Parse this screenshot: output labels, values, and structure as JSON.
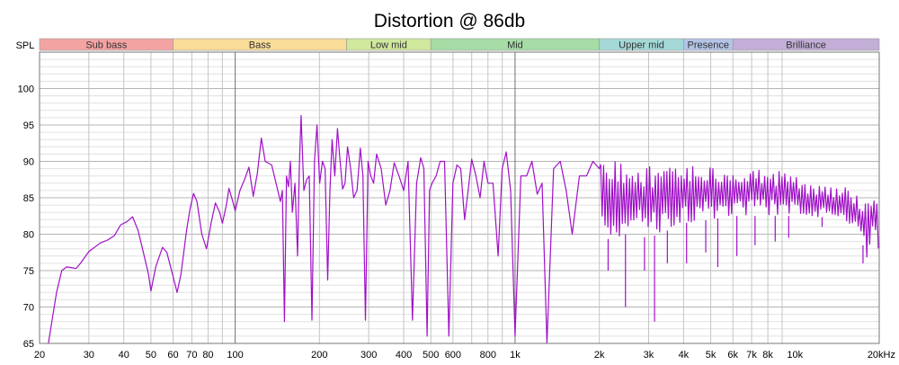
{
  "chart_data": {
    "type": "line",
    "title": "Distortion @ 86db",
    "ylabel": "SPL",
    "xlabel": "",
    "x_scale": "log",
    "xlim": [
      20,
      20000
    ],
    "ylim": [
      65,
      105
    ],
    "grid": true,
    "x_tick_labels": [
      {
        "v": 20,
        "t": "20"
      },
      {
        "v": 30,
        "t": "30"
      },
      {
        "v": 40,
        "t": "40"
      },
      {
        "v": 50,
        "t": "50"
      },
      {
        "v": 60,
        "t": "60"
      },
      {
        "v": 70,
        "t": "70"
      },
      {
        "v": 80,
        "t": "80"
      },
      {
        "v": 100,
        "t": "100"
      },
      {
        "v": 200,
        "t": "200"
      },
      {
        "v": 300,
        "t": "300"
      },
      {
        "v": 400,
        "t": "400"
      },
      {
        "v": 500,
        "t": "500"
      },
      {
        "v": 600,
        "t": "600"
      },
      {
        "v": 800,
        "t": "800"
      },
      {
        "v": 1000,
        "t": "1k"
      },
      {
        "v": 2000,
        "t": "2k"
      },
      {
        "v": 3000,
        "t": "3k"
      },
      {
        "v": 4000,
        "t": "4k"
      },
      {
        "v": 5000,
        "t": "5k"
      },
      {
        "v": 6000,
        "t": "6k"
      },
      {
        "v": 7000,
        "t": "7k"
      },
      {
        "v": 8000,
        "t": "8k"
      },
      {
        "v": 10000,
        "t": "10k"
      },
      {
        "v": 20000,
        "t": "20kHz"
      }
    ],
    "y_tick_labels": [
      {
        "v": 65,
        "t": "65"
      },
      {
        "v": 70,
        "t": "70"
      },
      {
        "v": 75,
        "t": "75"
      },
      {
        "v": 80,
        "t": "80"
      },
      {
        "v": 85,
        "t": "85"
      },
      {
        "v": 90,
        "t": "90"
      },
      {
        "v": 95,
        "t": "95"
      },
      {
        "v": 100,
        "t": "100"
      }
    ],
    "bands": [
      {
        "label": "Sub bass",
        "from": 20,
        "to": 60,
        "color": "#f4a3a3"
      },
      {
        "label": "Bass",
        "from": 60,
        "to": 250,
        "color": "#f9dc98"
      },
      {
        "label": "Low mid",
        "from": 250,
        "to": 500,
        "color": "#cfe89e"
      },
      {
        "label": "Mid",
        "from": 500,
        "to": 2000,
        "color": "#a6dca6"
      },
      {
        "label": "Upper mid",
        "from": 2000,
        "to": 4000,
        "color": "#a3d8d6"
      },
      {
        "label": "Presence",
        "from": 4000,
        "to": 6000,
        "color": "#b3c3e6"
      },
      {
        "label": "Brilliance",
        "from": 6000,
        "to": 20000,
        "color": "#c2aed6"
      }
    ],
    "line_color": "#a010c8",
    "series": [
      {
        "values_smooth": [
          [
            21.5,
            65
          ],
          [
            23,
            72
          ],
          [
            24,
            75
          ],
          [
            25,
            75.5
          ],
          [
            27,
            75.3
          ],
          [
            28,
            76
          ],
          [
            30,
            77.6
          ],
          [
            33,
            78.8
          ],
          [
            35,
            79.2
          ],
          [
            37,
            79.8
          ],
          [
            39,
            81.3
          ],
          [
            41,
            81.7
          ],
          [
            43,
            82.4
          ],
          [
            45,
            80.5
          ],
          [
            47,
            77.5
          ],
          [
            49,
            74.5
          ],
          [
            50,
            72.2
          ],
          [
            52,
            75.5
          ],
          [
            55,
            78.2
          ],
          [
            57,
            77.5
          ],
          [
            60,
            74.2
          ],
          [
            62,
            72
          ],
          [
            64,
            74.5
          ],
          [
            67,
            80.5
          ],
          [
            69,
            83.5
          ],
          [
            71,
            85.6
          ],
          [
            73,
            84.5
          ],
          [
            76,
            80
          ],
          [
            79,
            78
          ],
          [
            82,
            81.5
          ],
          [
            85,
            84.3
          ],
          [
            88,
            83
          ],
          [
            90,
            81.5
          ],
          [
            93,
            84
          ],
          [
            95,
            86.3
          ],
          [
            98,
            84.5
          ],
          [
            100,
            83.2
          ],
          [
            104,
            86
          ],
          [
            108,
            87.5
          ],
          [
            112,
            89.2
          ],
          [
            116,
            85.2
          ],
          [
            120,
            88.4
          ],
          [
            124,
            93.2
          ],
          [
            128,
            90
          ],
          [
            135,
            89.5
          ]
        ],
        "spikes": [
          [
            145,
            84.5
          ],
          [
            150,
            68
          ],
          [
            155,
            86.5
          ],
          [
            160,
            83
          ],
          [
            167,
            77
          ],
          [
            172,
            96.3
          ],
          [
            180,
            87.5
          ],
          [
            188,
            68.2
          ],
          [
            196,
            95
          ],
          [
            205,
            90
          ],
          [
            214,
            73.7
          ],
          [
            222,
            93
          ],
          [
            232,
            94.5
          ],
          [
            242,
            86.2
          ],
          [
            252,
            92
          ],
          [
            265,
            85
          ],
          [
            280,
            91.8
          ],
          [
            292,
            68.2
          ],
          [
            305,
            88
          ],
          [
            320,
            91
          ],
          [
            345,
            84
          ],
          [
            370,
            89.8
          ],
          [
            400,
            86
          ],
          [
            430,
            68.2
          ],
          [
            460,
            90.5
          ],
          [
            485,
            66
          ],
          [
            505,
            87
          ],
          [
            540,
            90
          ],
          [
            580,
            66
          ],
          [
            620,
            89.5
          ],
          [
            660,
            82
          ],
          [
            700,
            90.3
          ],
          [
            750,
            85
          ],
          [
            800,
            87
          ],
          [
            870,
            77
          ],
          [
            930,
            91.3
          ],
          [
            1000,
            66
          ],
          [
            1100,
            88
          ],
          [
            1200,
            85.5
          ],
          [
            1300,
            64.5
          ],
          [
            1450,
            90
          ],
          [
            1600,
            80
          ],
          [
            1800,
            88
          ],
          [
            2000,
            89
          ]
        ],
        "upper_envelope": [
          [
            2000,
            89.5
          ],
          [
            2500,
            90.5
          ],
          [
            3000,
            90
          ],
          [
            3500,
            89.5
          ],
          [
            4000,
            89.5
          ],
          [
            5000,
            89.5
          ],
          [
            6000,
            89.3
          ],
          [
            7000,
            89.5
          ],
          [
            8000,
            89
          ],
          [
            9000,
            88.5
          ],
          [
            10000,
            88.2
          ],
          [
            11000,
            87
          ],
          [
            13000,
            86.5
          ],
          [
            15000,
            86.5
          ],
          [
            17000,
            85
          ],
          [
            18000,
            84
          ],
          [
            19000,
            85.5
          ],
          [
            20000,
            85
          ]
        ],
        "lower_envelope": [
          [
            2000,
            79
          ],
          [
            2500,
            80
          ],
          [
            3000,
            79.5
          ],
          [
            3500,
            80.5
          ],
          [
            4000,
            81.5
          ],
          [
            5000,
            82
          ],
          [
            6000,
            82.5
          ],
          [
            7000,
            82.5
          ],
          [
            8000,
            82.5
          ],
          [
            9000,
            82.5
          ],
          [
            10000,
            82.5
          ],
          [
            11000,
            82.5
          ],
          [
            13000,
            82.3
          ],
          [
            15000,
            81.5
          ],
          [
            17000,
            80.5
          ],
          [
            18000,
            76.5
          ],
          [
            19000,
            79.5
          ],
          [
            20000,
            77.5
          ]
        ],
        "dips": [
          [
            2150,
            75
          ],
          [
            2480,
            70
          ],
          [
            2900,
            75
          ],
          [
            3150,
            68
          ],
          [
            3500,
            76
          ],
          [
            4100,
            76
          ],
          [
            4800,
            77.5
          ],
          [
            5300,
            75.5
          ],
          [
            6200,
            77
          ],
          [
            7200,
            78.5
          ],
          [
            8500,
            79
          ],
          [
            9500,
            79.5
          ],
          [
            12500,
            81
          ],
          [
            17500,
            76
          ]
        ]
      }
    ]
  }
}
